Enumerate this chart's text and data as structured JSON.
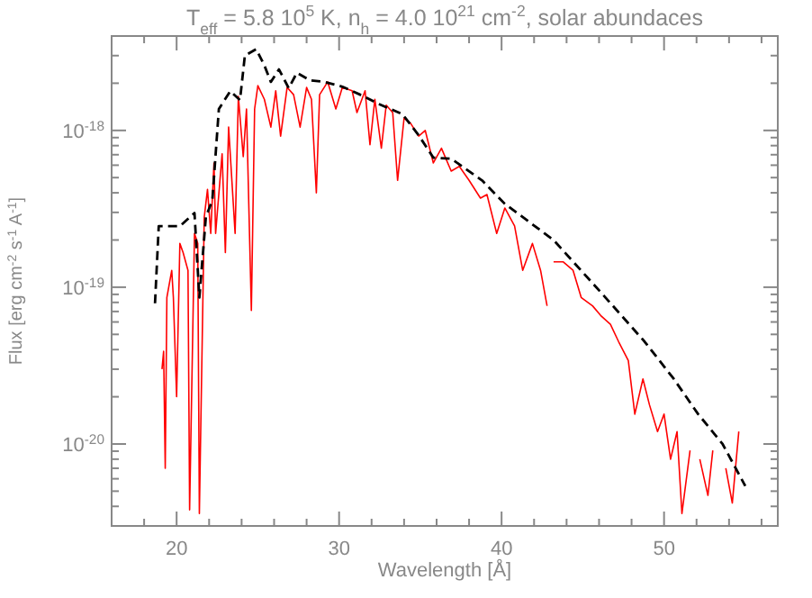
{
  "chart_data": {
    "type": "line",
    "title": "T$_{eff}$ = 5.8 10$^{5}$ K, n$_{h}$ = 4.0 10$^{21}$ cm$^{-2}$, solar abundaces",
    "xlabel": "Wavelength [Å]",
    "ylabel": "Flux [erg cm$^{-2}$ s$^{-1}$ A$^{-1}$]",
    "log": "y",
    "grid": false,
    "xlim": [
      16,
      57
    ],
    "xticks": [
      {
        "value": 18,
        "label": null
      },
      20,
      {
        "value": 22,
        "label": null
      },
      {
        "value": 24,
        "label": null
      },
      {
        "value": 26,
        "label": null
      },
      {
        "value": 28,
        "label": null
      },
      30,
      {
        "value": 32,
        "label": null
      },
      {
        "value": 34,
        "label": null
      },
      {
        "value": 36,
        "label": null
      },
      {
        "value": 38,
        "label": null
      },
      40,
      {
        "value": 42,
        "label": null
      },
      {
        "value": 44,
        "label": null
      },
      {
        "value": 46,
        "label": null
      },
      {
        "value": 48,
        "label": null
      },
      50,
      {
        "value": 52,
        "label": null
      },
      {
        "value": 54,
        "label": null
      },
      {
        "value": 56,
        "label": null
      }
    ],
    "ylim": [
      3e-21,
      4e-18
    ],
    "yticks": [
      {
        "value": 4e-21,
        "label": null
      },
      {
        "value": 5e-21,
        "label": null
      },
      {
        "value": 6e-21,
        "label": null
      },
      {
        "value": 7e-21,
        "label": null
      },
      {
        "value": 8e-21,
        "label": null
      },
      {
        "value": 9e-21,
        "label": null
      },
      {
        "value": 1e-20,
        "label": "10$^{-20}$"
      },
      {
        "value": 2e-20,
        "label": null
      },
      {
        "value": 3e-20,
        "label": null
      },
      {
        "value": 4e-20,
        "label": null
      },
      {
        "value": 5e-20,
        "label": null
      },
      {
        "value": 6e-20,
        "label": null
      },
      {
        "value": 7e-20,
        "label": null
      },
      {
        "value": 8e-20,
        "label": null
      },
      {
        "value": 9e-20,
        "label": null
      },
      {
        "value": 1e-19,
        "label": "10$^{-19}$"
      },
      {
        "value": 2e-19,
        "label": null
      },
      {
        "value": 3e-19,
        "label": null
      },
      {
        "value": 4e-19,
        "label": null
      },
      {
        "value": 5e-19,
        "label": null
      },
      {
        "value": 6e-19,
        "label": null
      },
      {
        "value": 7e-19,
        "label": null
      },
      {
        "value": 8e-19,
        "label": null
      },
      {
        "value": 9e-19,
        "label": null
      },
      {
        "value": 1e-18,
        "label": "10$^{-18}$"
      },
      {
        "value": 2e-18,
        "label": null
      },
      {
        "value": 3e-18,
        "label": null
      },
      {
        "value": 4e-18,
        "label": null
      }
    ],
    "series": [
      {
        "color": "#ff0000",
        "line_style": "solid",
        "x": [
          19.1,
          19.2,
          19.3,
          19.4,
          19.7,
          19.8,
          20.0,
          20.2,
          20.4,
          20.7,
          20.8,
          21.1,
          21.3,
          21.4,
          21.7,
          21.9,
          22.1,
          22.3,
          22.4,
          22.8,
          23.0,
          23.2,
          23.6,
          23.8,
          24.1,
          24.3,
          24.6,
          24.8,
          25.0,
          25.4,
          25.8,
          26.1,
          26.4,
          26.8,
          27.2,
          27.6,
          28.0,
          28.3,
          28.6,
          28.8,
          29.3,
          29.8,
          30.2,
          30.8,
          31.1,
          31.6,
          31.9,
          32.2,
          32.6,
          32.9,
          33.3,
          33.6,
          34.0,
          34.4,
          34.9,
          35.3,
          35.8,
          36.3,
          36.9,
          37.4,
          38.0,
          38.7,
          39.1,
          39.7,
          40.2,
          40.8,
          41.3,
          41.9,
          42.4,
          42.8,
          43.0,
          43.2,
          43.8,
          44.4,
          44.9,
          45.6,
          46.1,
          46.7,
          47.2,
          47.8,
          48.2,
          48.7,
          49.1,
          49.6,
          50.0,
          50.4,
          50.8,
          51.1,
          51.6,
          51.9,
          52.2,
          52.7,
          53.0,
          53.4,
          53.8,
          54.2,
          54.6
        ],
        "values": [
          3e-20,
          3.9e-20,
          7e-21,
          8.6e-20,
          1.28e-19,
          8.6e-20,
          2e-20,
          1.9e-19,
          1.66e-19,
          1.28e-19,
          3.8e-21,
          2.2e-19,
          1.9e-19,
          3.6e-21,
          2.8e-19,
          4.2e-19,
          2.2e-19,
          6.2e-19,
          2.2e-19,
          7.1e-19,
          1.66e-19,
          1.05e-18,
          2.2e-19,
          1.65e-18,
          6.8e-19,
          1.37e-18,
          7.1e-20,
          1.37e-18,
          1.93e-18,
          1.58e-18,
          1.05e-18,
          1.79e-18,
          9.2e-19,
          1.88e-18,
          1.69e-18,
          1.05e-18,
          1.88e-18,
          1.58e-18,
          4e-19,
          1.69e-18,
          2.04e-18,
          1.37e-18,
          1.88e-18,
          1.79e-18,
          1.3e-18,
          1.79e-18,
          8.1e-19,
          1.58e-18,
          7.7e-19,
          1.45e-18,
          1.3e-18,
          4.8e-19,
          1.2e-18,
          1.11e-18,
          9.2e-19,
          1e-18,
          6.2e-19,
          7.7e-19,
          5.5e-19,
          5.9e-19,
          4.8e-19,
          3.7e-19,
          3.9e-19,
          2.2e-19,
          3.2e-19,
          2.46e-19,
          1.28e-19,
          1.9e-19,
          1.28e-19,
          7.6e-20,
          null,
          1.45e-19,
          1.45e-19,
          1.28e-19,
          8.6e-20,
          7.6e-20,
          6.6e-20,
          5.8e-20,
          4.5e-20,
          3.4e-20,
          1.55e-20,
          2.6e-20,
          1.78e-20,
          1.2e-20,
          1.55e-20,
          8e-21,
          1.2e-20,
          3.6e-21,
          9.1e-21,
          null,
          8e-21,
          4.7e-21,
          9.1e-21,
          null,
          7e-21,
          4.2e-21,
          1.2e-20
        ]
      },
      {
        "color": "#000000",
        "line_style": "dashed",
        "x": [
          18.67,
          18.9,
          20.2,
          21.1,
          21.4,
          21.8,
          22.2,
          22.6,
          23.3,
          23.9,
          24.2,
          24.9,
          25.4,
          25.8,
          26.3,
          26.9,
          27.4,
          28.2,
          29.1,
          30.2,
          31.3,
          32.4,
          33.9,
          34.9,
          35.8,
          36.9,
          38.8,
          40.2,
          43.2,
          46.1,
          48.8,
          50.6,
          52.1,
          53.6,
          55.0
        ],
        "values": [
          7.9e-20,
          2.45e-19,
          2.45e-19,
          2.97e-19,
          8.6e-20,
          2.8e-19,
          3.6e-19,
          1.37e-18,
          1.78e-18,
          1.56e-18,
          3e-18,
          3.3e-18,
          2.6e-18,
          2.04e-18,
          2.45e-18,
          1.86e-18,
          2.33e-18,
          2.09e-18,
          2.04e-18,
          1.9e-18,
          1.69e-18,
          1.48e-18,
          1.27e-18,
          9.3e-19,
          6.7e-19,
          6.6e-19,
          4.8e-19,
          3.4e-19,
          2e-19,
          9.3e-20,
          4.5e-20,
          2.6e-20,
          1.55e-20,
          1e-20,
          5.4e-21
        ]
      }
    ]
  }
}
